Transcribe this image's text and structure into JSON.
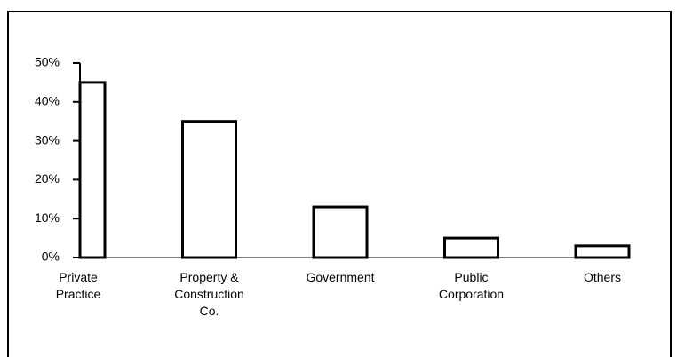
{
  "chart_data": {
    "type": "bar",
    "categories": [
      "Private\nPractice",
      "Property &\nConstruction\nCo.",
      "Government",
      "Public\nCorporation",
      "Others"
    ],
    "values": [
      45,
      35,
      13,
      5,
      3
    ],
    "color": "#ffffff",
    "ylim": [
      0,
      50
    ],
    "yticks": [
      {
        "value": 0,
        "label": "0%"
      },
      {
        "value": 10,
        "label": "10%"
      },
      {
        "value": 20,
        "label": "20%"
      },
      {
        "value": 30,
        "label": "30%"
      },
      {
        "value": 40,
        "label": "40%"
      },
      {
        "value": 50,
        "label": "50%"
      }
    ],
    "grid": false
  }
}
